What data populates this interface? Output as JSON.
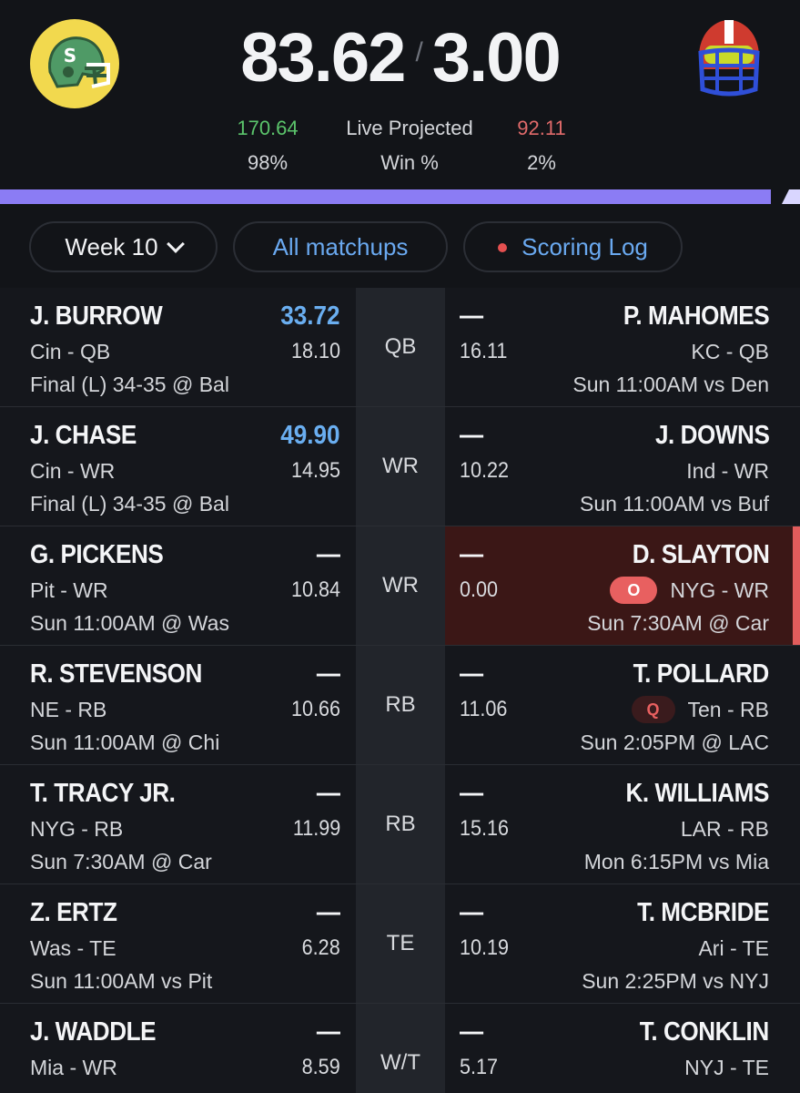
{
  "header": {
    "score_home": "83.62",
    "score_sep": "/",
    "score_away": "3.00",
    "proj_home": "170.64",
    "proj_label": "Live Projected",
    "proj_away": "92.11",
    "win_home": "98%",
    "win_label": "Win %",
    "win_away": "2%",
    "win_progress_home": 0.98,
    "left_logo_letter": "S",
    "colors": {
      "accent_purple": "#8b7cf4",
      "positive": "#5bc46b",
      "negative": "#e06a6a",
      "link": "#6aa9f0"
    }
  },
  "filters": {
    "week_label": "Week 10",
    "all_matchups_label": "All matchups",
    "scoring_log_label": "Scoring Log"
  },
  "rows": [
    {
      "pos": "QB",
      "left": {
        "name": "J. BURROW",
        "score": "33.72",
        "score_highlight": true,
        "team": "Cin - QB",
        "proj": "18.10",
        "game": "Final (L) 34-35 @ Bal"
      },
      "right": {
        "name": "P. MAHOMES",
        "score": "—",
        "team": "KC - QB",
        "proj": "16.11",
        "game": "Sun 11:00AM vs Den",
        "status": ""
      }
    },
    {
      "pos": "WR",
      "left": {
        "name": "J. CHASE",
        "score": "49.90",
        "score_highlight": true,
        "team": "Cin - WR",
        "proj": "14.95",
        "game": "Final (L) 34-35 @ Bal"
      },
      "right": {
        "name": "J. DOWNS",
        "score": "—",
        "team": "Ind - WR",
        "proj": "10.22",
        "game": "Sun 11:00AM vs Buf",
        "status": ""
      }
    },
    {
      "pos": "WR",
      "left": {
        "name": "G. PICKENS",
        "score": "—",
        "score_highlight": false,
        "team": "Pit - WR",
        "proj": "10.84",
        "game": "Sun 11:00AM @ Was"
      },
      "right": {
        "name": "D. SLAYTON",
        "score": "—",
        "team": "NYG - WR",
        "proj": "0.00",
        "game": "Sun 7:30AM @ Car",
        "status": "O"
      }
    },
    {
      "pos": "RB",
      "left": {
        "name": "R. STEVENSON",
        "score": "—",
        "score_highlight": false,
        "team": "NE - RB",
        "proj": "10.66",
        "game": "Sun 11:00AM @ Chi"
      },
      "right": {
        "name": "T. POLLARD",
        "score": "—",
        "team": "Ten - RB",
        "proj": "11.06",
        "game": "Sun 2:05PM @ LAC",
        "status": "Q"
      }
    },
    {
      "pos": "RB",
      "left": {
        "name": "T. TRACY JR.",
        "score": "—",
        "score_highlight": false,
        "team": "NYG - RB",
        "proj": "11.99",
        "game": "Sun 7:30AM @ Car"
      },
      "right": {
        "name": "K. WILLIAMS",
        "score": "—",
        "team": "LAR - RB",
        "proj": "15.16",
        "game": "Mon 6:15PM vs Mia",
        "status": ""
      }
    },
    {
      "pos": "TE",
      "left": {
        "name": "Z. ERTZ",
        "score": "—",
        "score_highlight": false,
        "team": "Was - TE",
        "proj": "6.28",
        "game": "Sun 11:00AM vs Pit"
      },
      "right": {
        "name": "T. MCBRIDE",
        "score": "—",
        "team": "Ari - TE",
        "proj": "10.19",
        "game": "Sun 2:25PM vs NYJ",
        "status": ""
      }
    },
    {
      "pos": "W/T",
      "left": {
        "name": "J. WADDLE",
        "score": "—",
        "score_highlight": false,
        "team": "Mia - WR",
        "proj": "8.59",
        "game": ""
      },
      "right": {
        "name": "T. CONKLIN",
        "score": "—",
        "team": "NYJ - TE",
        "proj": "5.17",
        "game": "",
        "status": ""
      }
    }
  ]
}
